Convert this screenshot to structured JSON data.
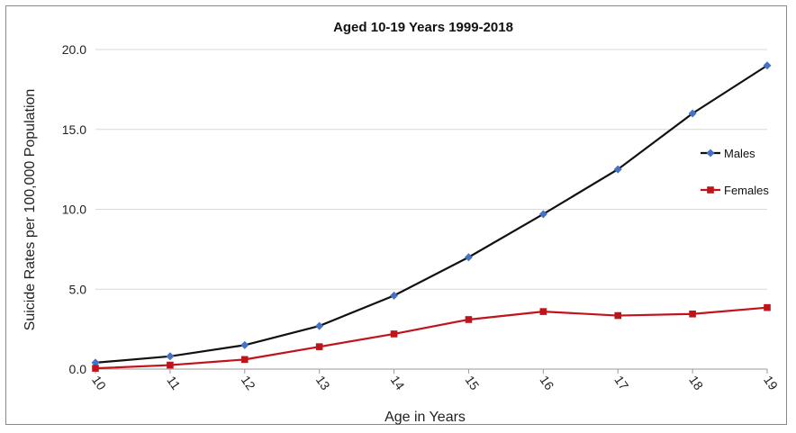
{
  "chart_data": {
    "type": "line",
    "title": "Aged 10-19 Years 1999-2018",
    "xlabel": "Age in Years",
    "ylabel": "Suicide Rates per 100,000 Population",
    "categories": [
      "10",
      "11",
      "12",
      "13",
      "14",
      "15",
      "16",
      "17",
      "18",
      "19"
    ],
    "ylim": [
      0,
      20
    ],
    "yticks": [
      "0.0",
      "5.0",
      "10.0",
      "15.0",
      "20.0"
    ],
    "grid": true,
    "legend_position": "right",
    "series": [
      {
        "name": "Males",
        "color": "#4472C4",
        "line_color": "#111111",
        "marker": "diamond",
        "values": [
          0.4,
          0.8,
          1.5,
          2.7,
          4.6,
          7.0,
          9.7,
          12.5,
          16.0,
          19.0
        ]
      },
      {
        "name": "Females",
        "color": "#C0141C",
        "line_color": "#C0141C",
        "marker": "square",
        "values": [
          0.05,
          0.25,
          0.6,
          1.4,
          2.2,
          3.1,
          3.6,
          3.35,
          3.45,
          3.85
        ]
      }
    ]
  }
}
